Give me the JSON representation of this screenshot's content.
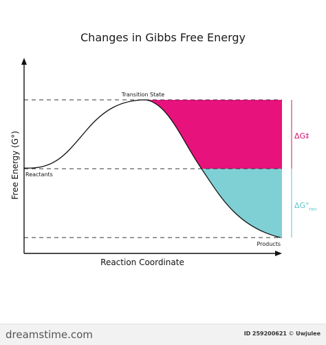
{
  "diagram": {
    "title": "Changes in Gibbs Free Energy",
    "y_axis_label": "Free Energy (G°)",
    "x_axis_label": "Reaction Coordinate",
    "labels": {
      "transition_state": "Transition State",
      "reactants": "Reactants",
      "products": "Products",
      "activation_energy": "ΔG‡",
      "reaction_energy": "ΔG°",
      "reaction_energy_subscript": "rxn"
    },
    "colors": {
      "activation_fill": "#e8127c",
      "reaction_fill": "#7fd0d4",
      "activation_text": "#d4106f",
      "reaction_text": "#5cc4c8",
      "curve": "#111111"
    }
  },
  "footer": {
    "brand": "dreamstime.com",
    "id_label": "ID",
    "id_value": "259200621",
    "separator": "©",
    "author": "Uwjulee"
  }
}
